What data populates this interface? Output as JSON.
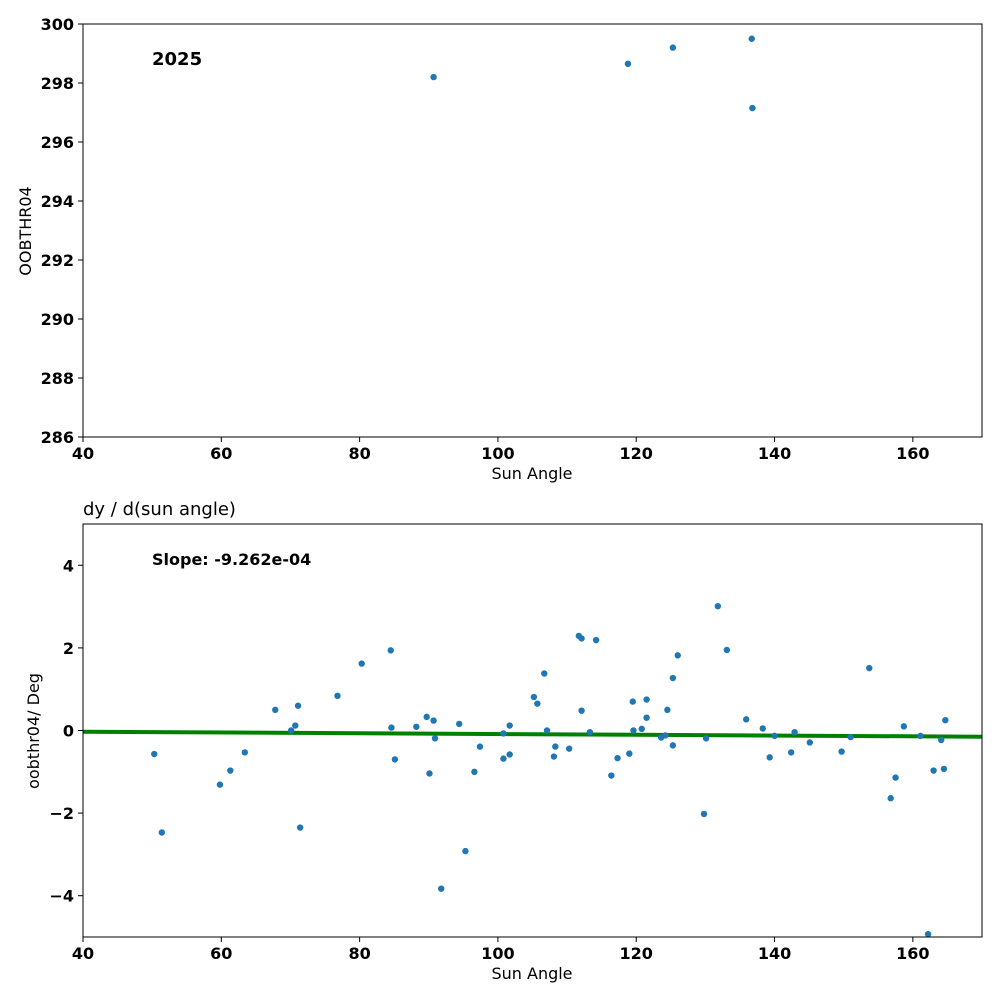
{
  "chart_data": [
    {
      "type": "scatter",
      "xlabel": "Sun Angle",
      "ylabel": "OOBTHR04",
      "annotation": "2025",
      "xlim": [
        40,
        170
      ],
      "ylim": [
        286,
        300
      ],
      "xticks": [
        40,
        60,
        80,
        100,
        120,
        140,
        160
      ],
      "yticks": [
        286,
        288,
        290,
        292,
        294,
        296,
        298,
        300
      ],
      "grid": false,
      "colors": {
        "points": "#1f77b4"
      },
      "points": [
        {
          "x": 90.7,
          "y": 298.2
        },
        {
          "x": 118.8,
          "y": 298.65
        },
        {
          "x": 125.3,
          "y": 299.2
        },
        {
          "x": 136.7,
          "y": 299.5
        },
        {
          "x": 136.8,
          "y": 297.15
        }
      ]
    },
    {
      "type": "scatter",
      "title": "dy / d(sun angle)",
      "xlabel": "Sun Angle",
      "ylabel": "oobthr04/ Deg",
      "annotation": "Slope: -9.262e-04",
      "xlim": [
        40,
        170
      ],
      "ylim": [
        -5,
        5
      ],
      "xticks": [
        40,
        60,
        80,
        100,
        120,
        140,
        160
      ],
      "yticks": [
        -4,
        -2,
        0,
        2,
        4
      ],
      "ytick_labels": [
        "−4",
        "−2",
        "0",
        "2",
        "4"
      ],
      "grid": false,
      "colors": {
        "points": "#1f77b4",
        "fit": "#008000"
      },
      "fit_line": {
        "x": [
          40,
          170
        ],
        "y": [
          -0.03,
          -0.15
        ]
      },
      "points": [
        {
          "x": 50.3,
          "y": -0.57
        },
        {
          "x": 51.4,
          "y": -2.47
        },
        {
          "x": 59.8,
          "y": -1.31
        },
        {
          "x": 61.3,
          "y": -0.97
        },
        {
          "x": 63.4,
          "y": -0.53
        },
        {
          "x": 67.8,
          "y": 0.5
        },
        {
          "x": 70.1,
          "y": 0.0
        },
        {
          "x": 70.7,
          "y": 0.12
        },
        {
          "x": 71.1,
          "y": 0.6
        },
        {
          "x": 71.4,
          "y": -2.35
        },
        {
          "x": 76.8,
          "y": 0.84
        },
        {
          "x": 80.3,
          "y": 1.62
        },
        {
          "x": 84.5,
          "y": 1.94
        },
        {
          "x": 84.6,
          "y": 0.07
        },
        {
          "x": 85.1,
          "y": -0.7
        },
        {
          "x": 88.2,
          "y": 0.09
        },
        {
          "x": 89.7,
          "y": 0.33
        },
        {
          "x": 90.1,
          "y": -1.04
        },
        {
          "x": 90.7,
          "y": 0.24
        },
        {
          "x": 90.9,
          "y": -0.19
        },
        {
          "x": 91.8,
          "y": -3.83
        },
        {
          "x": 94.4,
          "y": 0.16
        },
        {
          "x": 95.3,
          "y": -2.92
        },
        {
          "x": 96.6,
          "y": -1.0
        },
        {
          "x": 97.4,
          "y": -0.39
        },
        {
          "x": 100.8,
          "y": -0.68
        },
        {
          "x": 100.8,
          "y": -0.07
        },
        {
          "x": 101.7,
          "y": -0.58
        },
        {
          "x": 101.7,
          "y": 0.12
        },
        {
          "x": 105.2,
          "y": 0.81
        },
        {
          "x": 105.7,
          "y": 0.65
        },
        {
          "x": 106.7,
          "y": 1.38
        },
        {
          "x": 107.1,
          "y": 0.0
        },
        {
          "x": 108.1,
          "y": -0.63
        },
        {
          "x": 108.3,
          "y": -0.39
        },
        {
          "x": 110.3,
          "y": -0.44
        },
        {
          "x": 111.7,
          "y": 2.29
        },
        {
          "x": 112.1,
          "y": 2.23
        },
        {
          "x": 112.1,
          "y": 0.48
        },
        {
          "x": 113.3,
          "y": -0.04
        },
        {
          "x": 114.2,
          "y": 2.19
        },
        {
          "x": 116.4,
          "y": -1.09
        },
        {
          "x": 117.3,
          "y": -0.67
        },
        {
          "x": 119.0,
          "y": -0.56
        },
        {
          "x": 119.5,
          "y": 0.7
        },
        {
          "x": 119.6,
          "y": 0.0
        },
        {
          "x": 120.8,
          "y": 0.04
        },
        {
          "x": 121.5,
          "y": 0.75
        },
        {
          "x": 121.5,
          "y": 0.31
        },
        {
          "x": 123.6,
          "y": -0.17
        },
        {
          "x": 124.2,
          "y": -0.12
        },
        {
          "x": 124.5,
          "y": 0.5
        },
        {
          "x": 125.3,
          "y": -0.36
        },
        {
          "x": 125.3,
          "y": 1.27
        },
        {
          "x": 126.0,
          "y": 1.82
        },
        {
          "x": 129.8,
          "y": -2.02
        },
        {
          "x": 130.1,
          "y": -0.19
        },
        {
          "x": 131.8,
          "y": 3.01
        },
        {
          "x": 133.1,
          "y": 1.95
        },
        {
          "x": 135.9,
          "y": 0.27
        },
        {
          "x": 138.3,
          "y": 0.05
        },
        {
          "x": 139.3,
          "y": -0.65
        },
        {
          "x": 140.0,
          "y": -0.13
        },
        {
          "x": 142.4,
          "y": -0.53
        },
        {
          "x": 142.9,
          "y": -0.04
        },
        {
          "x": 145.1,
          "y": -0.29
        },
        {
          "x": 149.7,
          "y": -0.51
        },
        {
          "x": 151.0,
          "y": -0.16
        },
        {
          "x": 153.7,
          "y": 1.51
        },
        {
          "x": 156.8,
          "y": -1.64
        },
        {
          "x": 157.5,
          "y": -1.14
        },
        {
          "x": 158.7,
          "y": 0.1
        },
        {
          "x": 161.1,
          "y": -0.13
        },
        {
          "x": 162.2,
          "y": -4.93
        },
        {
          "x": 163.0,
          "y": -0.97
        },
        {
          "x": 164.1,
          "y": -0.23
        },
        {
          "x": 164.5,
          "y": -0.93
        },
        {
          "x": 164.7,
          "y": 0.25
        }
      ]
    }
  ]
}
